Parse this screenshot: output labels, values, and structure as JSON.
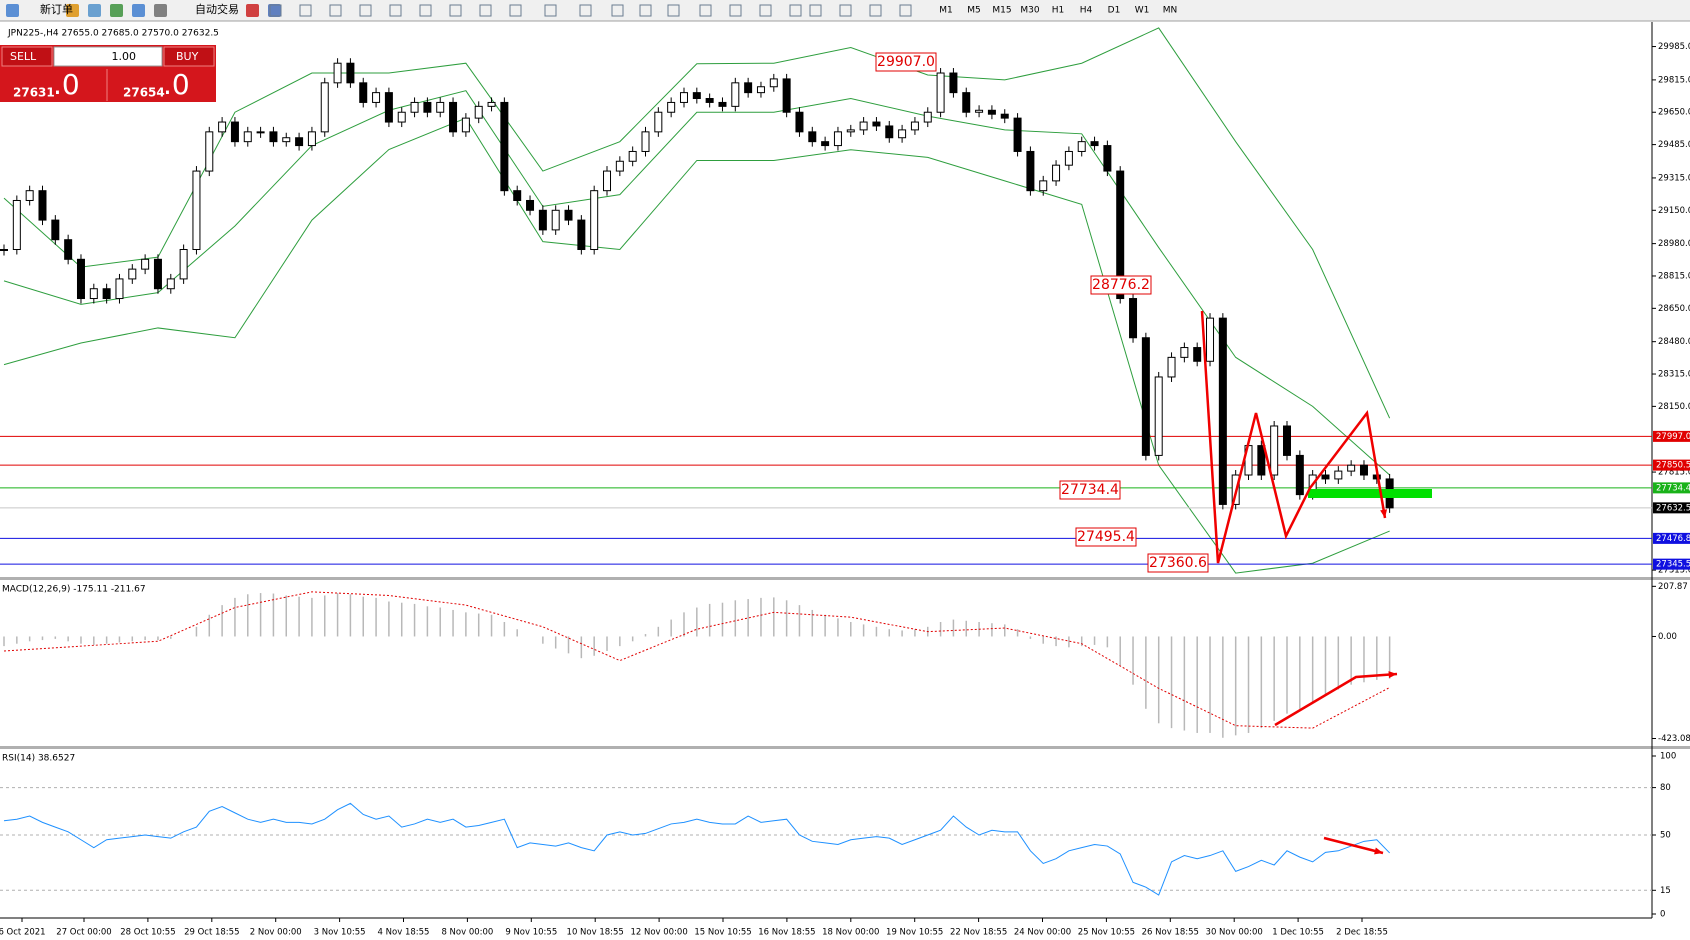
{
  "toolbar": {
    "buttons": [
      "新订单",
      "自动交易"
    ],
    "timeframes": [
      "M1",
      "M5",
      "M15",
      "M30",
      "H1",
      "H4",
      "D1",
      "W1",
      "MN"
    ]
  },
  "trade_panel": {
    "sell": "SELL",
    "buy": "BUY",
    "volume": "1.00",
    "sell_price": "27631",
    "sell_price_big": ".0",
    "buy_price": "27654",
    "buy_price_big": ".0"
  },
  "chart": {
    "header": "JPN225-,H4  27655.0 27685.0 27570.0 27632.5",
    "ylim": [
      27285,
      30100
    ],
    "yticks": [
      {
        "value": 29985,
        "label": "29985.0"
      },
      {
        "value": 29815,
        "label": "29815.0"
      },
      {
        "value": 29650,
        "label": "29650.0"
      },
      {
        "value": 29485,
        "label": "29485.0"
      },
      {
        "value": 29315,
        "label": "29315.0"
      },
      {
        "value": 29150,
        "label": "29150.0"
      },
      {
        "value": 28980,
        "label": "28980.0"
      },
      {
        "value": 28815,
        "label": "28815.0"
      },
      {
        "value": 28650,
        "label": "28650.0"
      },
      {
        "value": 28480,
        "label": "28480.0"
      },
      {
        "value": 28315,
        "label": "28315.0"
      },
      {
        "value": 28150,
        "label": "28150.0"
      },
      {
        "value": 27815,
        "label": "27815.0"
      },
      {
        "value": 27315,
        "label": "27315.0"
      }
    ],
    "closes": [
      28950,
      29200,
      29250,
      29100,
      29000,
      28900,
      28700,
      28750,
      28700,
      28800,
      28850,
      28900,
      28750,
      28800,
      28950,
      29350,
      29550,
      29600,
      29500,
      29550,
      29550,
      29500,
      29520,
      29480,
      29550,
      29800,
      29900,
      29800,
      29700,
      29750,
      29600,
      29650,
      29700,
      29650,
      29700,
      29550,
      29620,
      29680,
      29700,
      29250,
      29200,
      29150,
      29050,
      29150,
      29100,
      28950,
      29250,
      29350,
      29400,
      29450,
      29550,
      29650,
      29700,
      29750,
      29720,
      29700,
      29680,
      29800,
      29750,
      29780,
      29820,
      29650,
      29550,
      29500,
      29480,
      29550,
      29560,
      29600,
      29580,
      29520,
      29560,
      29600,
      29650,
      29850,
      29750,
      29650,
      29660,
      29640,
      29620,
      29450,
      29250,
      29300,
      29380,
      29450,
      29500,
      29480,
      29350,
      28700,
      28500,
      27900,
      28300,
      28400,
      28450,
      28380,
      28600,
      27650,
      27800,
      27950,
      27800,
      28050,
      27900,
      27700,
      27800,
      27780,
      27820,
      27850,
      27800,
      27780,
      27632.5
    ],
    "bands": {
      "color": "#2e9e3e",
      "upper": [
        29212,
        28860,
        28911,
        29650,
        29850,
        29850,
        29900,
        29350,
        29500,
        29897,
        29900,
        29980,
        29840,
        29815,
        29900,
        30080,
        29500,
        28950,
        28090
      ],
      "middle": [
        28790,
        28670,
        28730,
        29070,
        29480,
        29660,
        29760,
        29170,
        29230,
        29650,
        29650,
        29720,
        29630,
        29560,
        29540,
        28960,
        28400,
        28150,
        27800
      ],
      "lower": [
        28363,
        28473,
        28550,
        28500,
        29100,
        29460,
        29620,
        28990,
        28950,
        29404,
        29404,
        29459,
        29420,
        29300,
        29180,
        27850,
        27300,
        27350,
        27514
      ]
    },
    "levels": [
      {
        "value": 27997.0,
        "label": "27997.0",
        "color": "#e00000"
      },
      {
        "value": 27850.5,
        "label": "27850.5",
        "color": "#e00000"
      },
      {
        "value": 27734.4,
        "label": "27734.4",
        "color": "#19b219"
      },
      {
        "value": 27632.5,
        "label": "27632.5",
        "color": "#000000",
        "line_color": "#c8c8c8"
      },
      {
        "value": 27476.8,
        "label": "27476.8",
        "color": "#1010e0"
      },
      {
        "value": 27345.5,
        "label": "27345.5",
        "color": "#1010e0"
      }
    ],
    "annotations": [
      "29907.0",
      "28776.2",
      "27734.4",
      "27495.4",
      "27360.6"
    ]
  },
  "macd": {
    "label": "MACD(12,26,9) -175.11 -211.67",
    "ylim": [
      -450,
      230
    ],
    "yticks": [
      207.87,
      {
        "value": 0,
        "label": "0.00"
      },
      -423.08
    ],
    "histogram": [
      -40,
      -30,
      -20,
      -15,
      -10,
      -20,
      -30,
      -35,
      -30,
      -25,
      -20,
      -15,
      -15,
      -10,
      0,
      40,
      90,
      130,
      160,
      175,
      180,
      178,
      170,
      165,
      160,
      170,
      180,
      175,
      165,
      160,
      145,
      140,
      135,
      125,
      120,
      110,
      100,
      95,
      90,
      60,
      30,
      0,
      -30,
      -50,
      -70,
      -90,
      -80,
      -60,
      -40,
      -20,
      10,
      40,
      70,
      100,
      120,
      135,
      140,
      150,
      155,
      160,
      162,
      150,
      130,
      110,
      90,
      75,
      60,
      50,
      40,
      30,
      25,
      30,
      40,
      60,
      70,
      65,
      60,
      55,
      50,
      30,
      -10,
      -30,
      -40,
      -45,
      -40,
      -35,
      -45,
      -120,
      -200,
      -300,
      -360,
      -380,
      -390,
      -400,
      -400,
      -420,
      -410,
      -400,
      -380,
      -350,
      -320,
      -300,
      -270,
      -240,
      -220,
      -200,
      -190,
      -180,
      -175.11
    ],
    "signal": [
      -60,
      -40,
      -20,
      120,
      185,
      170,
      130,
      40,
      -100,
      30,
      100,
      80,
      20,
      35,
      -30,
      -215,
      -370,
      -380,
      -211.67
    ]
  },
  "rsi": {
    "label": "RSI(14) 38.6527",
    "ylim": [
      0,
      100
    ],
    "yticks": [
      100,
      80,
      50,
      15,
      0
    ],
    "values": [
      59,
      60,
      62,
      58,
      55,
      52,
      47,
      42,
      47,
      48,
      49,
      50,
      49,
      48,
      52,
      55,
      65,
      68,
      64,
      60,
      58,
      60,
      58,
      58,
      57,
      60,
      66,
      70,
      63,
      60,
      62,
      55,
      57,
      60,
      58,
      60,
      55,
      56,
      58,
      60,
      42,
      45,
      44,
      43,
      45,
      42,
      40,
      50,
      52,
      50,
      51,
      54,
      57,
      58,
      60,
      58,
      57,
      57,
      62,
      58,
      59,
      60,
      50,
      46,
      45,
      44,
      47,
      48,
      49,
      48,
      44,
      47,
      50,
      53,
      62,
      55,
      50,
      53,
      52,
      52,
      40,
      32,
      35,
      40,
      42,
      44,
      43,
      38,
      20,
      17,
      12,
      33,
      37,
      35,
      37,
      40,
      27,
      30,
      34,
      31,
      40,
      36,
      33,
      39,
      40,
      43,
      46,
      47,
      38.6527
    ]
  },
  "time_axis": {
    "labels": [
      "6 Oct 2021",
      "27 Oct 00:00",
      "28 Oct 10:55",
      "29 Oct 18:55",
      "2 Nov 00:00",
      "3 Nov 10:55",
      "4 Nov 18:55",
      "8 Nov 00:00",
      "9 Nov 10:55",
      "10 Nov 18:55",
      "12 Nov 00:00",
      "15 Nov 10:55",
      "16 Nov 18:55",
      "18 Nov 00:00",
      "19 Nov 10:55",
      "22 Nov 18:55",
      "24 Nov 00:00",
      "25 Nov 10:55",
      "26 Nov 18:55",
      "30 Nov 00:00",
      "1 Dec 10:55",
      "2 Dec 18:55"
    ]
  }
}
